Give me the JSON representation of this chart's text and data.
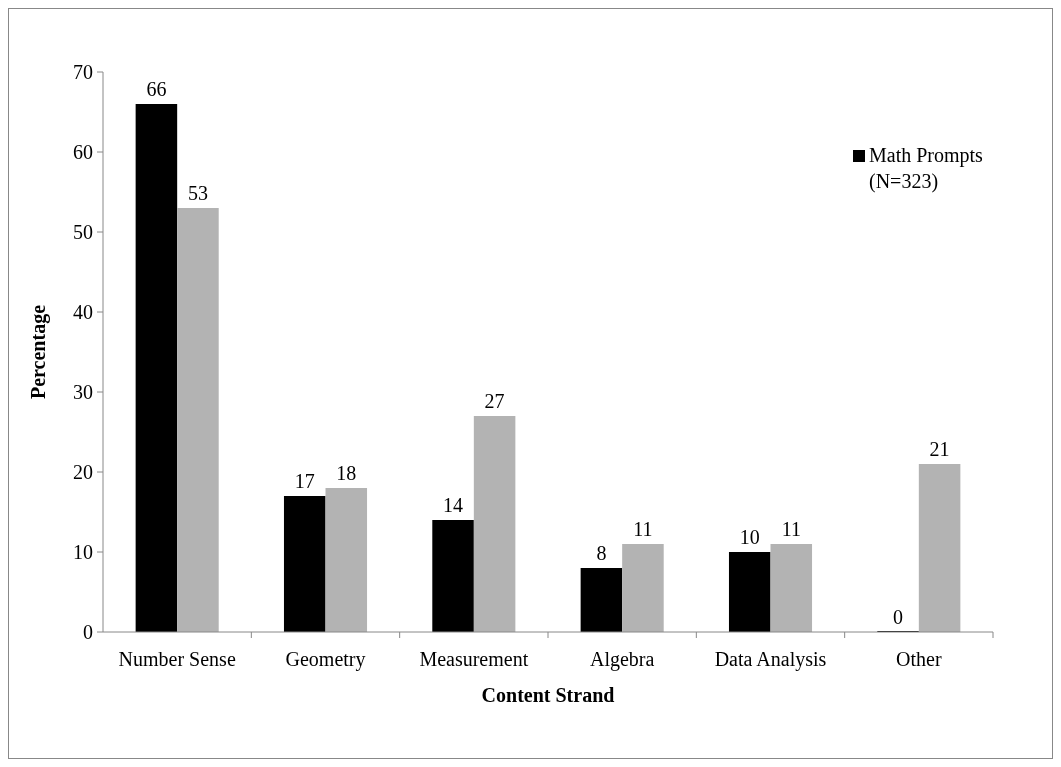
{
  "chart_data": {
    "type": "bar",
    "xlabel": "Content Strand",
    "ylabel": "Percentage",
    "categories": [
      "Number Sense",
      "Geometry",
      "Measurement",
      "Algebra",
      "Data Analysis",
      "Other"
    ],
    "series": [
      {
        "name": "Math Prompts (N=323)",
        "color": "#000000",
        "values": [
          66,
          17,
          14,
          8,
          10,
          0
        ]
      },
      {
        "color": "#b3b3b3",
        "values": [
          53,
          18,
          27,
          11,
          11,
          21
        ]
      }
    ],
    "ylim": [
      0,
      70
    ],
    "yticks": [
      0,
      10,
      20,
      30,
      40,
      50,
      60,
      70
    ],
    "grid": false,
    "legend": "top right",
    "data_labels": true
  }
}
